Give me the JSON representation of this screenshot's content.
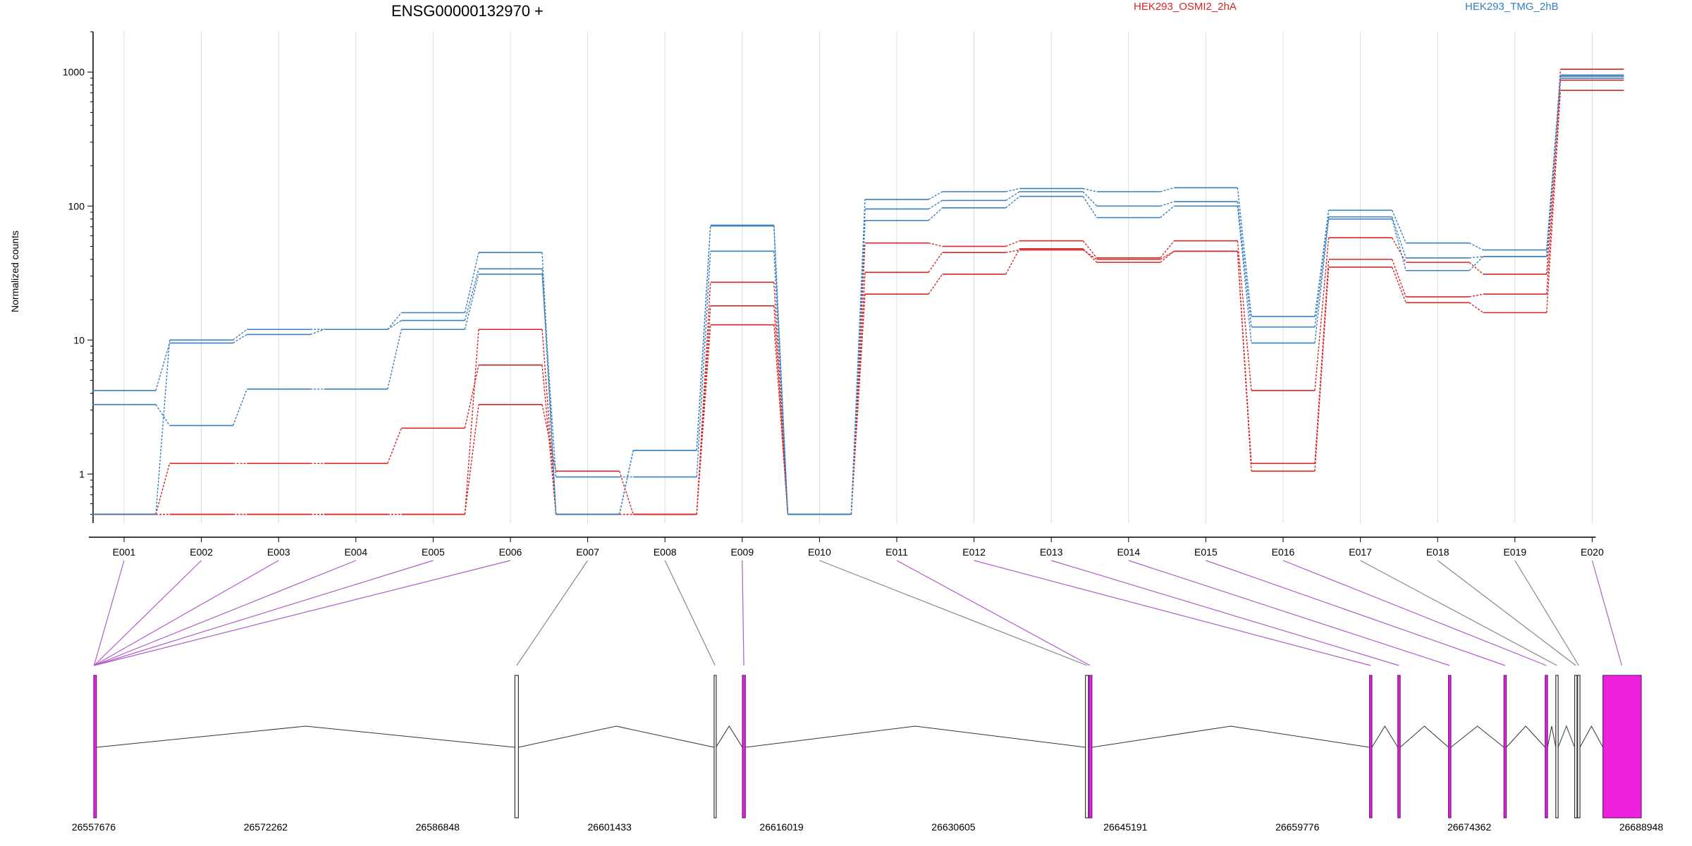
{
  "chart_data": {
    "type": "line",
    "title": "ENSG00000132970 +",
    "ylabel": "Normalized counts",
    "yscale": "log",
    "ylim": [
      0.43,
      2000
    ],
    "yticks": [
      {
        "value": 1,
        "label": "1"
      },
      {
        "value": 10,
        "label": "10"
      },
      {
        "value": 100,
        "label": "100"
      },
      {
        "value": 1000,
        "label": "1000"
      }
    ],
    "grid": "vertical",
    "legend_position": "top",
    "categories": [
      "E001",
      "E002",
      "E003",
      "E004",
      "E005",
      "E006",
      "E007",
      "E008",
      "E009",
      "E010",
      "E011",
      "E012",
      "E013",
      "E014",
      "E015",
      "E016",
      "E017",
      "E018",
      "E019",
      "E020"
    ],
    "groups": [
      {
        "name": "HEK293_OSMI2_2hA",
        "color": "#d62728"
      },
      {
        "name": "HEK293_TMG_2hB",
        "color": "#3a7fbf"
      }
    ],
    "series": [
      {
        "group": "HEK293_OSMI2_2hA",
        "values": [
          0.5,
          0.5,
          0.5,
          0.5,
          0.5,
          3.3,
          1.05,
          0.5,
          13,
          0.5,
          22,
          31,
          48,
          38,
          46,
          1.05,
          35,
          19,
          16,
          730
        ]
      },
      {
        "group": "HEK293_OSMI2_2hA",
        "values": [
          0.5,
          1.2,
          1.2,
          1.2,
          2.2,
          6.5,
          0.5,
          0.5,
          18,
          0.5,
          32,
          45,
          47,
          40,
          46,
          1.2,
          40,
          21,
          22,
          870
        ]
      },
      {
        "group": "HEK293_OSMI2_2hA",
        "values": [
          0.5,
          0.5,
          0.5,
          0.5,
          0.5,
          12,
          0.5,
          0.5,
          27,
          0.5,
          53,
          50,
          55,
          41,
          55,
          4.2,
          58,
          38,
          31,
          1050
        ]
      },
      {
        "group": "HEK293_TMG_2hB",
        "values": [
          3.3,
          2.3,
          4.3,
          4.3,
          12,
          31,
          0.95,
          0.95,
          46,
          0.5,
          78,
          97,
          118,
          82,
          100,
          9.5,
          80,
          33,
          42,
          900
        ]
      },
      {
        "group": "HEK293_TMG_2hB",
        "values": [
          4.2,
          9.5,
          11,
          12,
          14,
          34,
          0.5,
          1.5,
          71,
          0.5,
          95,
          110,
          128,
          100,
          108,
          12.5,
          83,
          41,
          42,
          930
        ]
      },
      {
        "group": "HEK293_TMG_2hB",
        "values": [
          0.5,
          10,
          12,
          12,
          16,
          45,
          0.5,
          1.5,
          72,
          0.5,
          112,
          128,
          135,
          128,
          137,
          15,
          93,
          53,
          47,
          950
        ]
      }
    ],
    "gene_model": {
      "coordinates": [
        "26557676",
        "26572262",
        "26586848",
        "26601433",
        "26616019",
        "26630605",
        "26645191",
        "26659776",
        "26674362",
        "26688948"
      ],
      "range": [
        26557676,
        26688948
      ],
      "exons": [
        {
          "start": 26557676,
          "end": 26557900,
          "significant": true
        },
        {
          "start": 26593400,
          "end": 26593700,
          "significant": false
        },
        {
          "start": 26610300,
          "end": 26610450,
          "significant": false
        },
        {
          "start": 26612700,
          "end": 26612950,
          "significant": true
        },
        {
          "start": 26641800,
          "end": 26642050,
          "significant": false
        },
        {
          "start": 26642100,
          "end": 26642350,
          "significant": true
        },
        {
          "start": 26665900,
          "end": 26666100,
          "significant": true
        },
        {
          "start": 26668300,
          "end": 26668500,
          "significant": true
        },
        {
          "start": 26672600,
          "end": 26672800,
          "significant": true
        },
        {
          "start": 26677300,
          "end": 26677500,
          "significant": true
        },
        {
          "start": 26680800,
          "end": 26681000,
          "significant": true
        },
        {
          "start": 26681700,
          "end": 26681900,
          "significant": false
        },
        {
          "start": 26683300,
          "end": 26683500,
          "significant": false
        },
        {
          "start": 26683550,
          "end": 26683750,
          "significant": false
        },
        {
          "start": 26685700,
          "end": 26688948,
          "significant": true
        }
      ],
      "exon_links": [
        {
          "exon": "E001",
          "genomic": 26557700,
          "significant": true
        },
        {
          "exon": "E002",
          "genomic": 26557700,
          "significant": true
        },
        {
          "exon": "E003",
          "genomic": 26557700,
          "significant": true
        },
        {
          "exon": "E004",
          "genomic": 26557700,
          "significant": true
        },
        {
          "exon": "E005",
          "genomic": 26557700,
          "significant": true
        },
        {
          "exon": "E006",
          "genomic": 26557700,
          "significant": true
        },
        {
          "exon": "E007",
          "genomic": 26593550,
          "significant": false
        },
        {
          "exon": "E008",
          "genomic": 26610380,
          "significant": false
        },
        {
          "exon": "E009",
          "genomic": 26612820,
          "significant": true
        },
        {
          "exon": "E010",
          "genomic": 26641950,
          "significant": false
        },
        {
          "exon": "E011",
          "genomic": 26642200,
          "significant": true
        },
        {
          "exon": "E012",
          "genomic": 26666000,
          "significant": true
        },
        {
          "exon": "E013",
          "genomic": 26668400,
          "significant": true
        },
        {
          "exon": "E014",
          "genomic": 26672700,
          "significant": true
        },
        {
          "exon": "E015",
          "genomic": 26677400,
          "significant": true
        },
        {
          "exon": "E016",
          "genomic": 26680900,
          "significant": true
        },
        {
          "exon": "E017",
          "genomic": 26681800,
          "significant": false
        },
        {
          "exon": "E018",
          "genomic": 26683400,
          "significant": false
        },
        {
          "exon": "E019",
          "genomic": 26683650,
          "significant": false
        },
        {
          "exon": "E020",
          "genomic": 26687300,
          "significant": true
        }
      ],
      "exon_color": "#ee22dd",
      "link_significant_color": "#b05cc8",
      "link_plain_color": "#888888"
    }
  }
}
